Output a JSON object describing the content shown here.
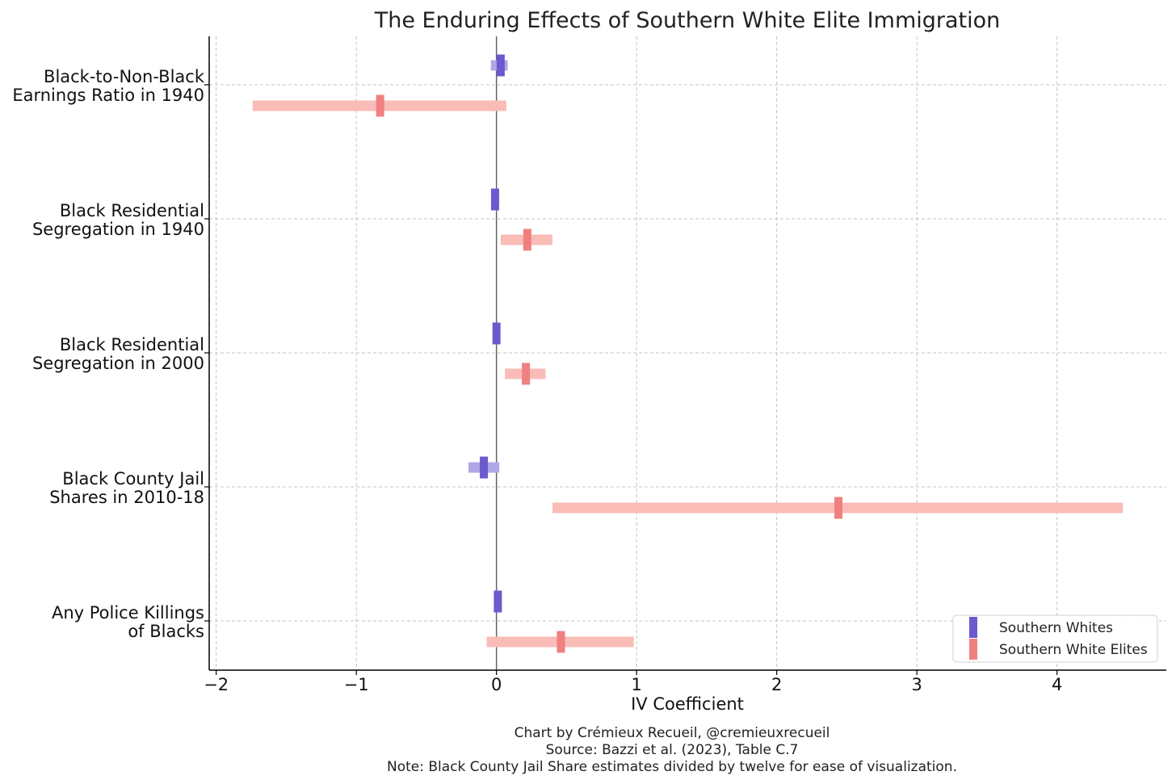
{
  "chart_data": {
    "type": "interval",
    "title": "The Enduring Effects of Southern White Elite Immigration",
    "xlabel": "IV Coefficient",
    "ylabel": "",
    "xlim": [
      -2.05,
      4.78
    ],
    "xticks": [
      -2,
      -1,
      0,
      1,
      2,
      3,
      4
    ],
    "xtick_labels": [
      "−2",
      "−1",
      "0",
      "1",
      "2",
      "3",
      "4"
    ],
    "grid": true,
    "legend_position": "bottom-right",
    "categories": [
      [
        "Black-to-Non-Black",
        "Earnings Ratio in 1940"
      ],
      [
        "Black Residential",
        "Segregation in 1940"
      ],
      [
        "Black Residential",
        "Segregation in 2000"
      ],
      [
        "Black County Jail",
        "Shares in 2010-18"
      ],
      [
        "Any Police Killings",
        "of Blacks"
      ]
    ],
    "series": [
      {
        "name": "Southern Whites",
        "color": "#6a5acd",
        "ci_color": "#b0a8e6",
        "estimates": [
          0.03,
          -0.01,
          0.0,
          -0.09,
          0.01
        ],
        "ci_low": [
          -0.04,
          -0.03,
          -0.02,
          -0.2,
          -0.01
        ],
        "ci_high": [
          0.08,
          0.02,
          0.02,
          0.02,
          0.03
        ]
      },
      {
        "name": "Southern White Elites",
        "color": "#f08080",
        "ci_color": "#f9bcb7",
        "estimates": [
          -0.83,
          0.22,
          0.21,
          2.44,
          0.46
        ],
        "ci_low": [
          -1.74,
          0.03,
          0.06,
          0.4,
          -0.07
        ],
        "ci_high": [
          0.07,
          0.4,
          0.35,
          4.47,
          0.98
        ]
      }
    ],
    "footer": [
      "Chart by Crémieux Recueil, @cremieuxrecueil",
      "Source: Bazzi et al. (2023), Table C.7",
      "Note: Black County Jail Share estimates divided by twelve for ease of visualization."
    ]
  }
}
